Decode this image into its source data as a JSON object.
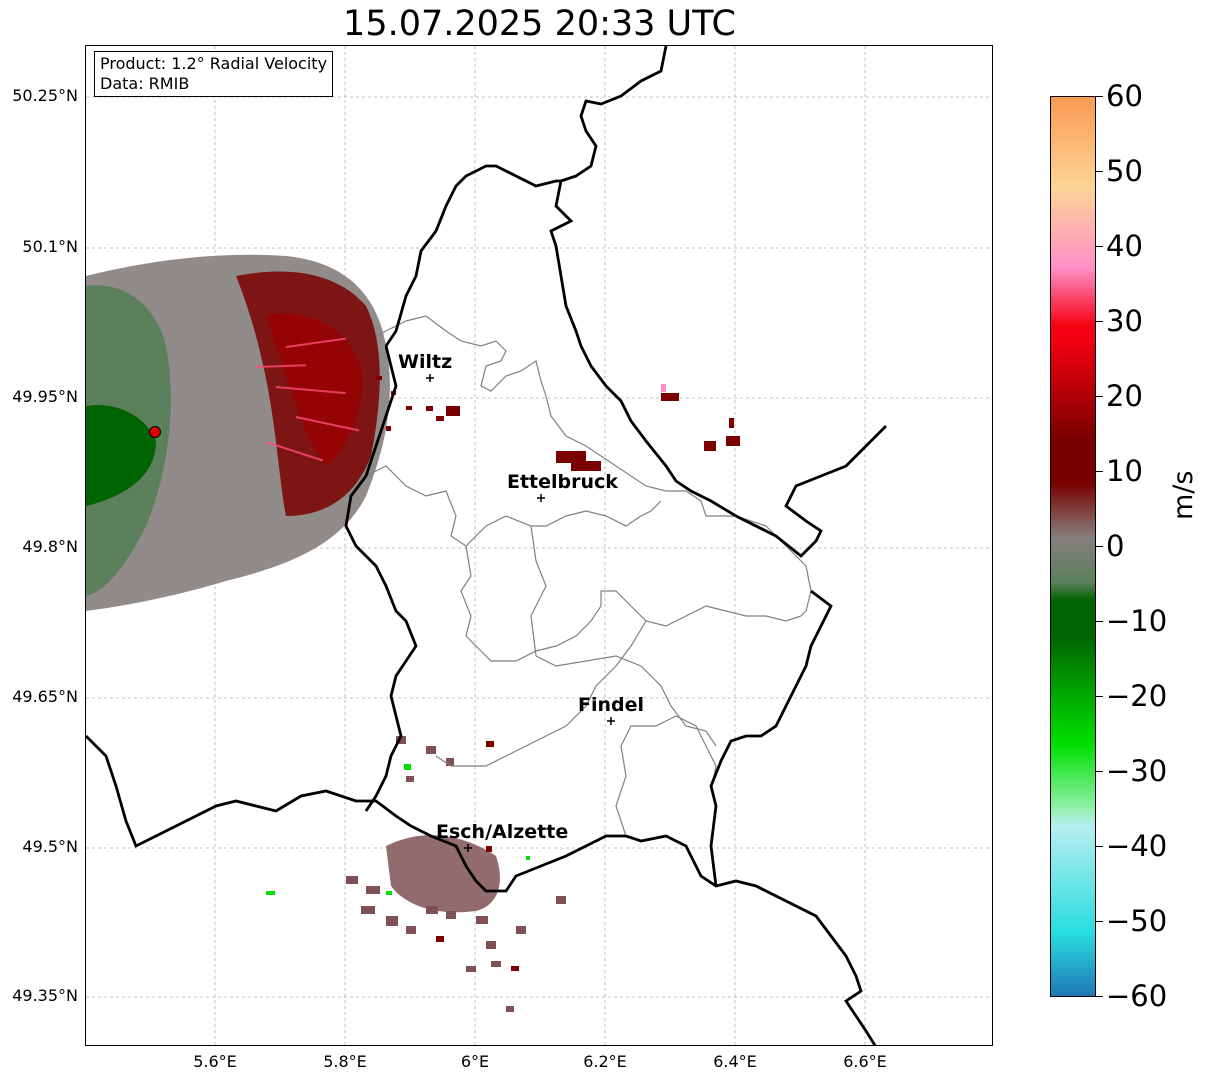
{
  "title": "15.07.2025 20:33 UTC",
  "info": {
    "product": "Product: 1.2° Radial Velocity",
    "data_source": "Data: RMIB"
  },
  "axes": {
    "lat_ticks": [
      "50.25°N",
      "50.1°N",
      "49.95°N",
      "49.8°N",
      "49.65°N",
      "49.5°N",
      "49.35°N"
    ],
    "lon_ticks": [
      "5.6°E",
      "5.8°E",
      "6°E",
      "6.2°E",
      "6.4°E",
      "6.6°E"
    ]
  },
  "cities": [
    {
      "name": "Wiltz"
    },
    {
      "name": "Ettelbruck"
    },
    {
      "name": "Findel"
    },
    {
      "name": "Esch/Alzette"
    }
  ],
  "radar_site_color": "#e00000",
  "colorbar": {
    "unit": "m/s",
    "ticks": [
      "60",
      "50",
      "40",
      "30",
      "20",
      "10",
      "0",
      "−10",
      "−20",
      "−30",
      "−40",
      "−50",
      "−60"
    ],
    "colors": {
      "top": "#f79a52",
      "orange_light": "#fdd596",
      "pink": "#ff8fc8",
      "red": "#f50010",
      "dark_red": "#7a0000",
      "gray": "#857f7d",
      "gray_green": "#5c7f5c",
      "dark_green": "#006400",
      "green": "#00e000",
      "light_green": "#8ff0a8",
      "cyan_light": "#b8eef0",
      "cyan": "#29dde0",
      "blue": "#1f77b4"
    }
  }
}
